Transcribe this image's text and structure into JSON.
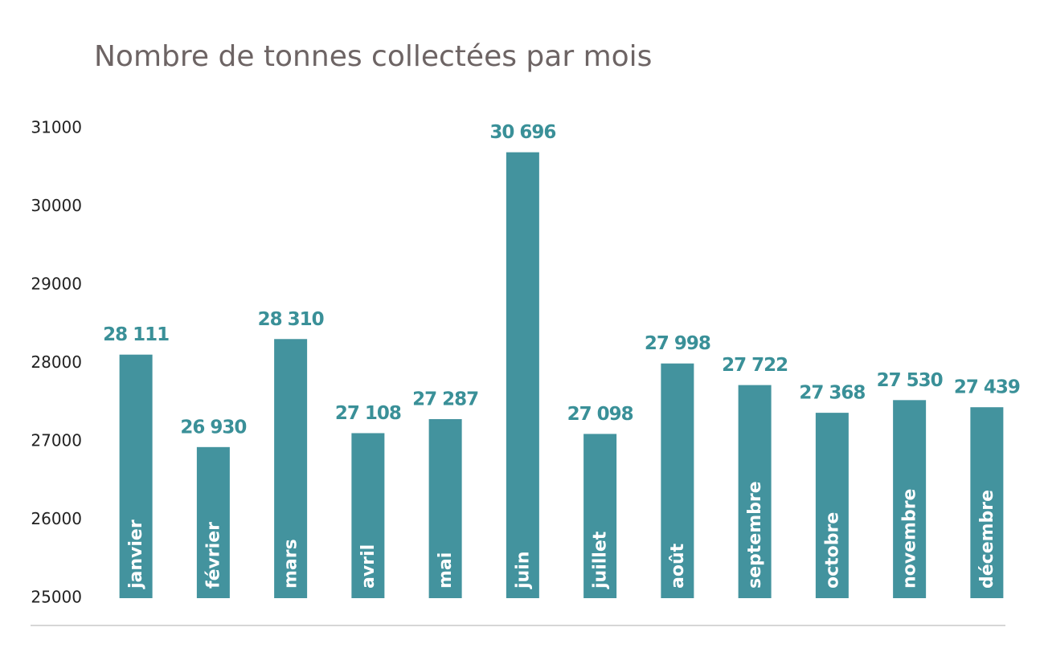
{
  "chart_data": {
    "type": "bar",
    "title": "Nombre de tonnes collectées par mois",
    "categories": [
      "janvier",
      "février",
      "mars",
      "avril",
      "mai",
      "juin",
      "juillet",
      "août",
      "septembre",
      "octobre",
      "novembre",
      "décembre"
    ],
    "values": [
      28111,
      26930,
      28310,
      27108,
      27287,
      30696,
      27098,
      27998,
      27722,
      27368,
      27530,
      27439
    ],
    "value_labels": [
      "28 111",
      "26 930",
      "28 310",
      "27 108",
      "27 287",
      "30 696",
      "27 098",
      "27 998",
      "27 722",
      "27 368",
      "27 530",
      "27 439"
    ],
    "color": "#43939e",
    "ylim": [
      25000,
      31000
    ],
    "yticks": [
      25000,
      26000,
      27000,
      28000,
      29000,
      30000,
      31000
    ],
    "grid": false
  }
}
